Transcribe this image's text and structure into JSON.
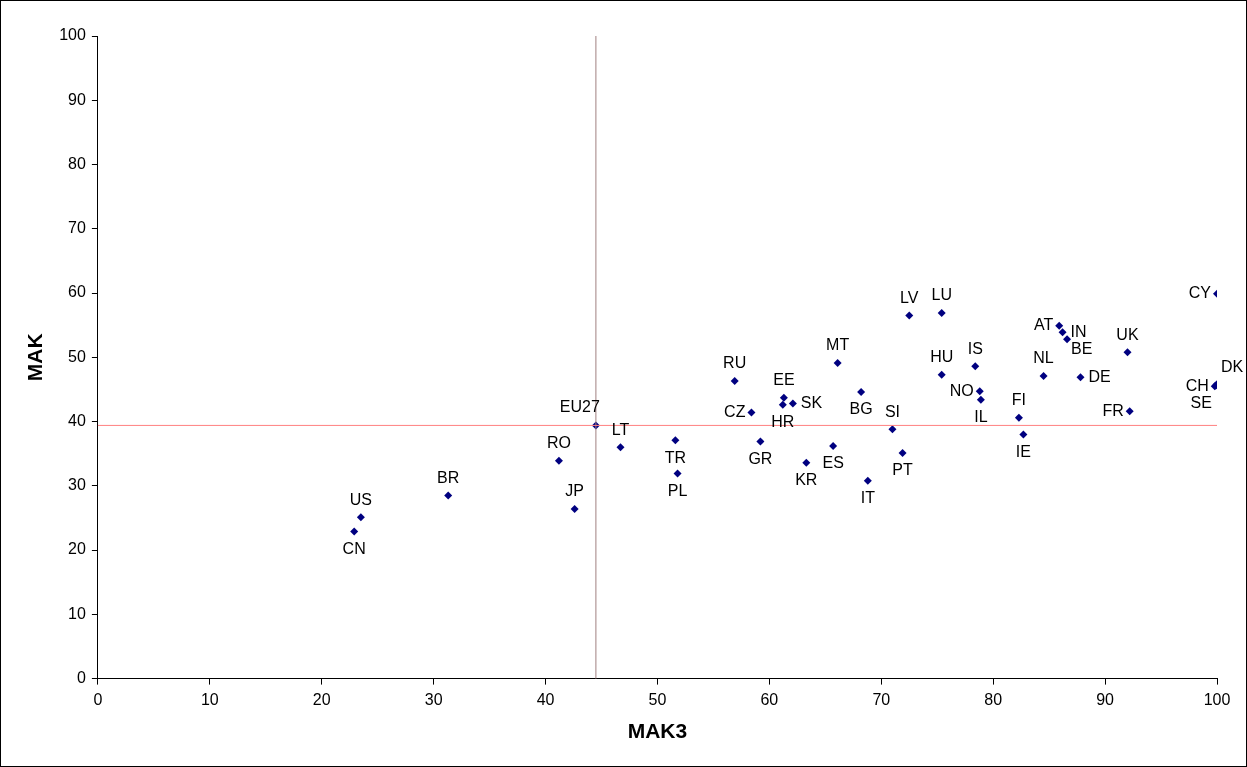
{
  "chart_data": {
    "type": "scatter",
    "xlabel": "MAK3",
    "ylabel": "MAK",
    "x": [
      22.9,
      23.5,
      31.3,
      41.2,
      42.6,
      44.5,
      46.7,
      51.6,
      51.8,
      56.9,
      58.4,
      59.2,
      61.3,
      61.2,
      62.1,
      63.3,
      65.7,
      66.1,
      68.2,
      68.8,
      71.0,
      71.9,
      72.5,
      75.4,
      75.4,
      78.4,
      78.8,
      78.9,
      82.3,
      82.7,
      84.5,
      85.9,
      86.2,
      86.6,
      87.8,
      92.0,
      92.2,
      100,
      99.8,
      99.9,
      100
    ],
    "values": [
      22.9,
      25.1,
      28.5,
      33.9,
      26.4,
      39.4,
      36.0,
      37.1,
      31.9,
      46.3,
      41.4,
      36.9,
      43.7,
      42.6,
      42.8,
      33.6,
      36.2,
      49.1,
      44.6,
      30.8,
      38.8,
      35.1,
      56.5,
      56.9,
      47.3,
      48.6,
      44.7,
      43.4,
      40.6,
      38.0,
      47.1,
      54.9,
      53.9,
      52.8,
      46.9,
      50.8,
      41.6,
      59.9,
      45.5,
      45.6,
      45.8
    ],
    "value_labels": [
      "CN",
      "US",
      "BR",
      "RO",
      "JP",
      "EU27",
      "LT",
      "TR",
      "PL",
      "RU",
      "CZ",
      "GR",
      "EE",
      "HR",
      "SK",
      "KR",
      "ES",
      "MT",
      "BG",
      "IT",
      "SI",
      "PT",
      "LV",
      "LU",
      "HU",
      "IS",
      "NO",
      "IL",
      "FI",
      "IE",
      "NL",
      "AT",
      "IN",
      "BE",
      "DE",
      "UK",
      "FR",
      "CY",
      "CH",
      "SE",
      "DK"
    ],
    "color": "#000080",
    "marker": "diamond",
    "xlim": [
      0,
      100
    ],
    "xticks": [
      0,
      10,
      20,
      30,
      40,
      50,
      60,
      70,
      80,
      90,
      100
    ],
    "ylim": [
      0,
      100
    ],
    "yticks": [
      0,
      10,
      20,
      30,
      40,
      50,
      60,
      70,
      80,
      90,
      100
    ],
    "ref_lines": [
      {
        "axis": "x",
        "value": 44.5,
        "color": "#a08080"
      },
      {
        "axis": "y",
        "value": 39.4,
        "color": "#ff8080"
      }
    ],
    "grid": false,
    "legend": false
  }
}
